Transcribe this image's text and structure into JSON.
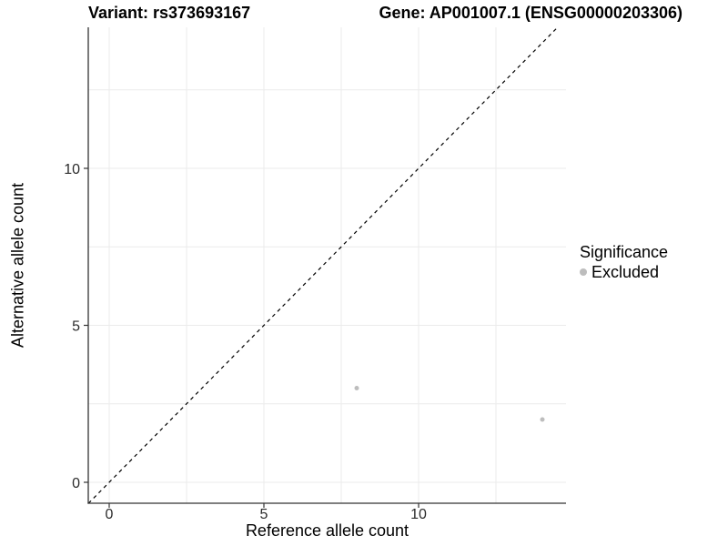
{
  "chart_data": {
    "type": "scatter",
    "titles": {
      "left": "Variant: rs373693167",
      "right": "Gene: AP001007.1 (ENSG00000203306)"
    },
    "xlabel": "Reference allele count",
    "ylabel": "Alternative allele count",
    "xlim": [
      -0.68,
      14.76
    ],
    "ylim": [
      -0.67,
      14.49
    ],
    "xticks": [
      0,
      5,
      10
    ],
    "yticks": [
      0,
      5,
      10
    ],
    "gridlines_x": [
      0,
      2.5,
      5,
      7.5,
      10,
      12.5
    ],
    "gridlines_y": [
      0,
      2.5,
      5,
      7.5,
      10,
      12.5
    ],
    "grid": true,
    "series": [
      {
        "name": "Excluded",
        "color": "#bdbdbd",
        "points": [
          {
            "x": 8,
            "y": 3
          },
          {
            "x": 14,
            "y": 2
          }
        ]
      }
    ],
    "identity_line": {
      "style": "dashed",
      "slope": 1,
      "intercept": 0,
      "color": "#000000"
    },
    "legend": {
      "title": "Significance",
      "position": "right",
      "items": [
        {
          "label": "Excluded",
          "color": "#bdbdbd"
        }
      ]
    },
    "colors": {
      "grid": "#ebebeb",
      "axis": "#333333",
      "tick_label": "#2b2b2b",
      "point": "#bdbdbd",
      "title": "#000000"
    }
  }
}
